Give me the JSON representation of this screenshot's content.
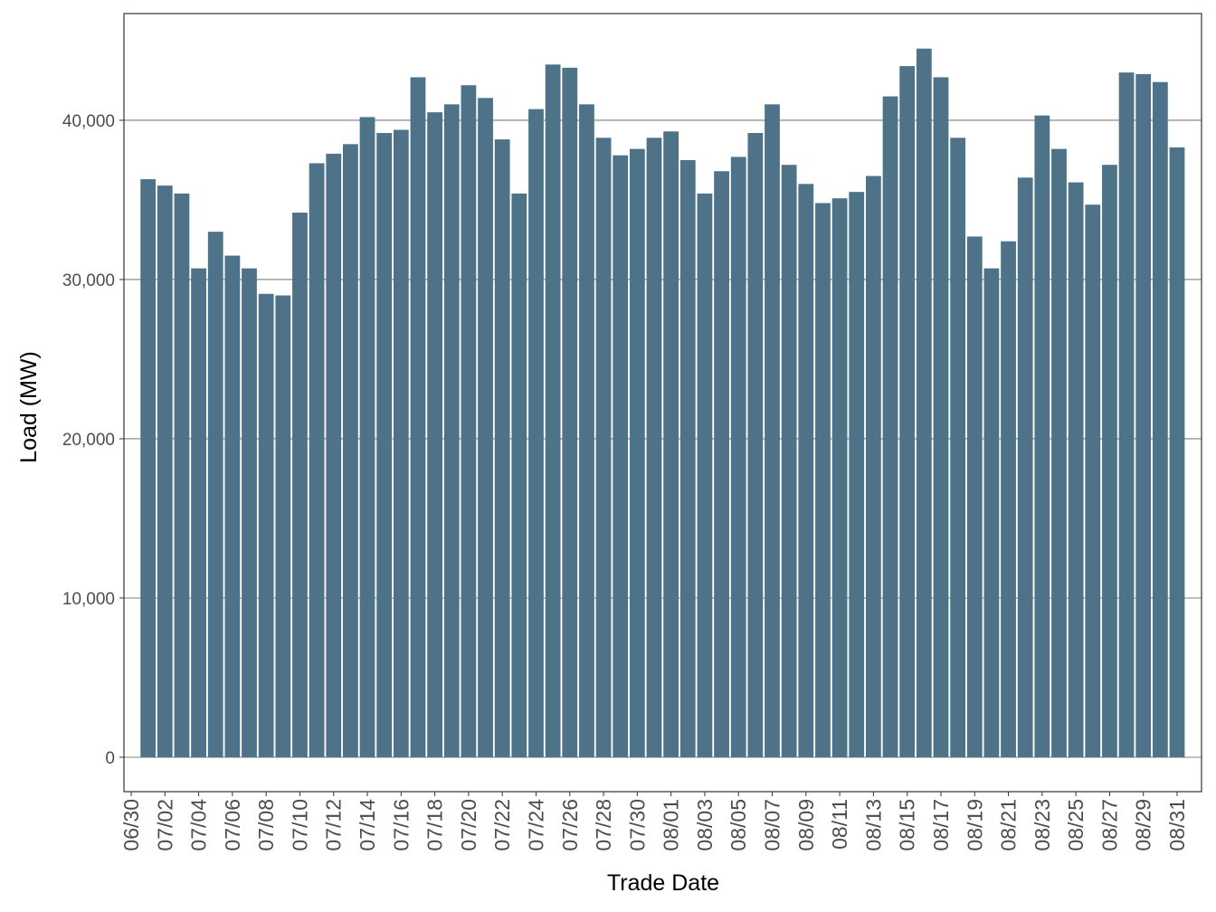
{
  "chart_data": {
    "type": "bar",
    "xlabel": "Trade Date",
    "ylabel": "Load (MW)",
    "categories": [
      "06/30",
      null,
      "07/02",
      null,
      "07/04",
      null,
      "07/06",
      null,
      "07/08",
      null,
      "07/10",
      null,
      "07/12",
      null,
      "07/14",
      null,
      "07/16",
      null,
      "07/18",
      null,
      "07/20",
      null,
      "07/22",
      null,
      "07/24",
      null,
      "07/26",
      null,
      "07/28",
      null,
      "07/30",
      null,
      "08/01",
      null,
      "08/03",
      null,
      "08/05",
      null,
      "08/07",
      null,
      "08/09",
      null,
      "08/11",
      null,
      "08/13",
      null,
      "08/15",
      null,
      "08/17",
      null,
      "08/19",
      null,
      "08/21",
      null,
      "08/23",
      null,
      "08/25",
      null,
      "08/27",
      null,
      "08/29",
      null,
      "08/31"
    ],
    "values": [
      null,
      36300,
      35900,
      35400,
      30700,
      33000,
      31500,
      30700,
      29100,
      29000,
      34200,
      37300,
      37900,
      38500,
      40200,
      39200,
      39400,
      42700,
      40500,
      41000,
      42200,
      41400,
      38800,
      35400,
      40700,
      43500,
      43300,
      41000,
      38900,
      37800,
      38200,
      38900,
      39300,
      37500,
      35400,
      36800,
      37700,
      39200,
      41000,
      37200,
      36000,
      34800,
      35100,
      35500,
      36500,
      41500,
      43400,
      44500,
      42700,
      38900,
      32700,
      30700,
      32400,
      36400,
      40300,
      38200,
      36100,
      34700,
      37200,
      43000,
      42900,
      42400,
      38300
    ],
    "color": "#4e7389",
    "ylim": [
      -2160,
      46700
    ],
    "yticks": [
      0,
      {
        "value": 10000,
        "label": "10,000"
      },
      {
        "value": 20000,
        "label": "20,000"
      },
      {
        "value": 30000,
        "label": "30,000"
      },
      {
        "value": 40000,
        "label": "40,000"
      }
    ],
    "grid": true
  }
}
